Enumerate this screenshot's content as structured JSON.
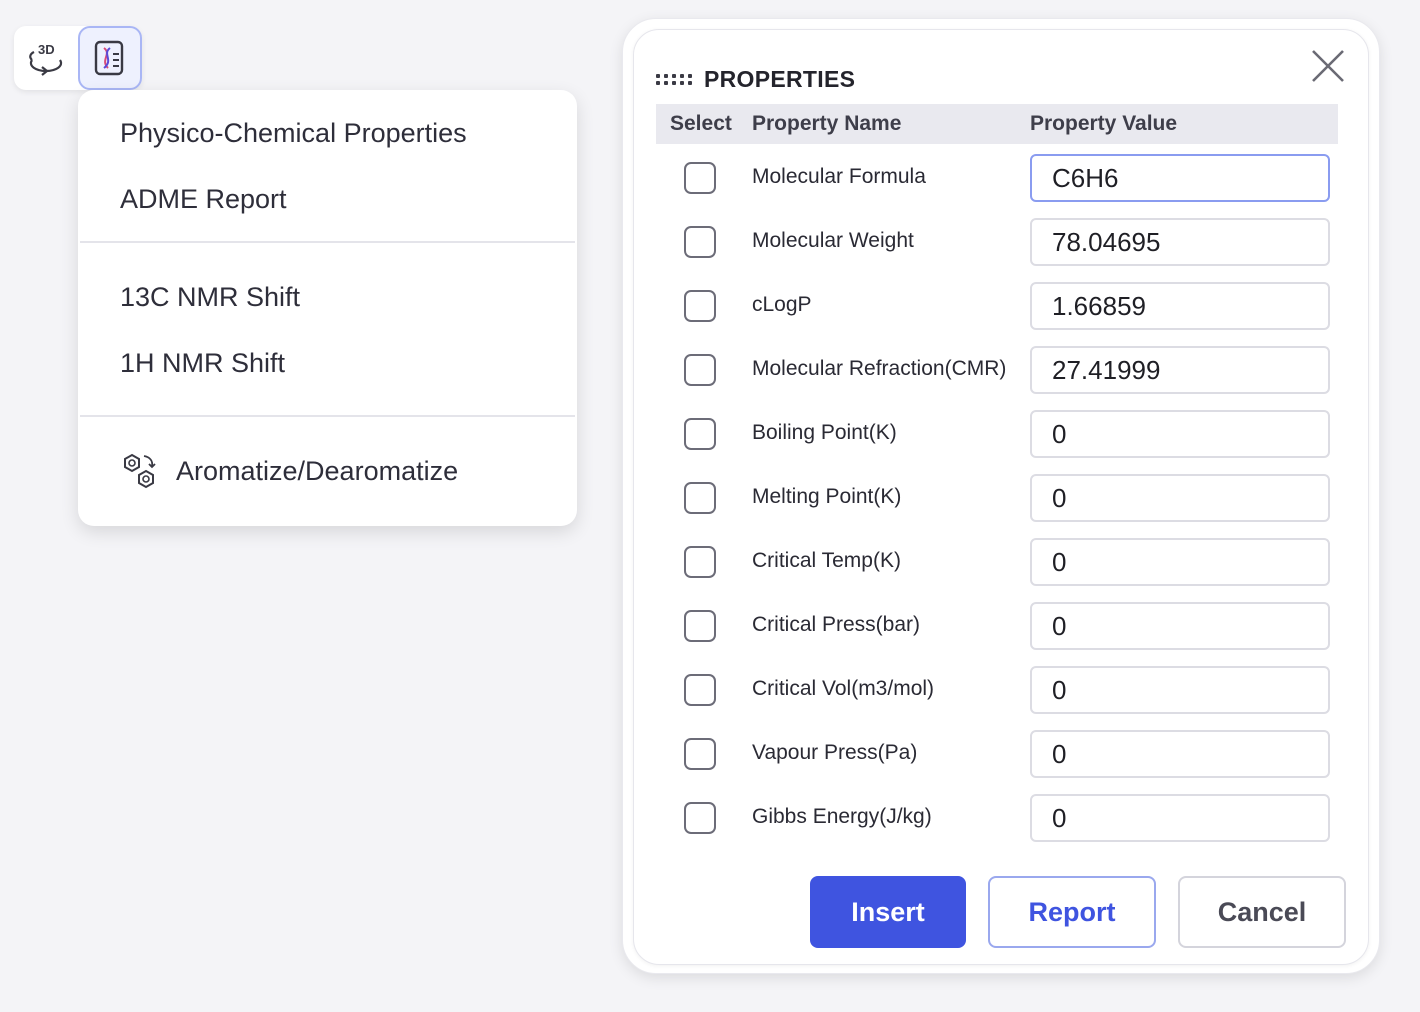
{
  "toolbar": {
    "buttons": [
      {
        "icon": "3d-rotate-icon",
        "label": "3D"
      },
      {
        "icon": "dna-report-icon",
        "active": true
      }
    ]
  },
  "menu": {
    "group1": [
      "Physico-Chemical Properties",
      "ADME Report"
    ],
    "group2": [
      "13C NMR Shift",
      "1H NMR Shift"
    ],
    "group3": {
      "label": "Aromatize/Dearomatize",
      "icon": "aromatize-icon"
    }
  },
  "dialog": {
    "title": "PROPERTIES",
    "columns": {
      "select": "Select",
      "name": "Property Name",
      "value": "Property Value"
    },
    "rows": [
      {
        "name": "Molecular Formula",
        "value": "C6H6",
        "checked": false
      },
      {
        "name": "Molecular Weight",
        "value": "78.04695",
        "checked": false
      },
      {
        "name": "cLogP",
        "value": "1.66859",
        "checked": false
      },
      {
        "name": "Molecular Refraction(CMR)",
        "value": "27.41999",
        "checked": false
      },
      {
        "name": "Boiling Point(K)",
        "value": "0",
        "checked": false
      },
      {
        "name": "Melting Point(K)",
        "value": "0",
        "checked": false
      },
      {
        "name": "Critical Temp(K)",
        "value": "0",
        "checked": false
      },
      {
        "name": "Critical Press(bar)",
        "value": "0",
        "checked": false
      },
      {
        "name": "Critical Vol(m3/mol)",
        "value": "0",
        "checked": false
      },
      {
        "name": "Vapour Press(Pa)",
        "value": "0",
        "checked": false
      },
      {
        "name": "Gibbs Energy(J/kg)",
        "value": "0",
        "checked": false
      }
    ],
    "buttons": {
      "insert": "Insert",
      "report": "Report",
      "cancel": "Cancel"
    }
  },
  "colors": {
    "accent": "#3f54e0",
    "background": "#f4f4f7"
  }
}
